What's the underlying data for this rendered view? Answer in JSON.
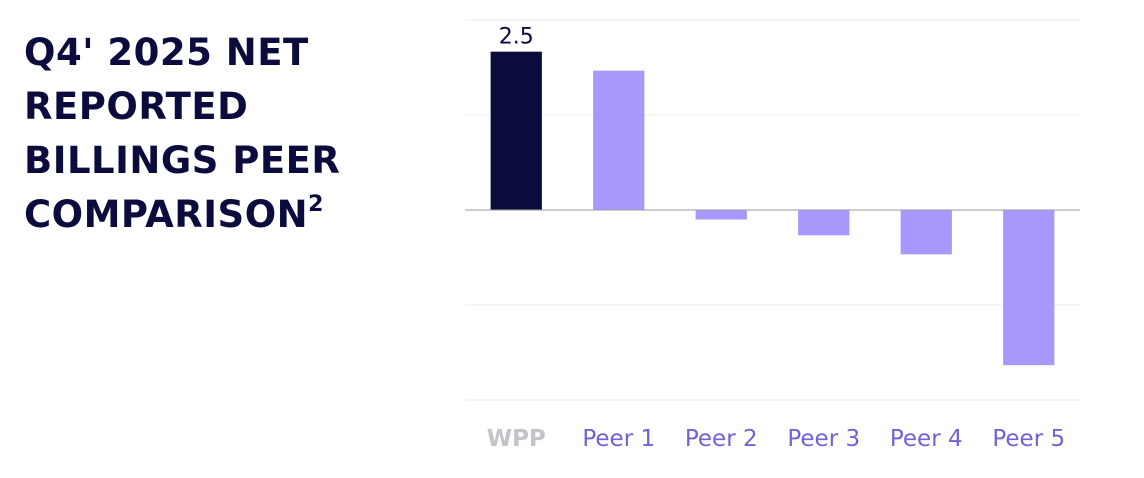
{
  "chart_data": {
    "type": "bar",
    "title": "Q4' 2025 NET REPORTED BILLINGS PEER COMPARISON",
    "title_superscript": "2",
    "categories": [
      "WPP",
      "Peer 1",
      "Peer 2",
      "Peer 3",
      "Peer 4",
      "Peer 5"
    ],
    "values": [
      2.5,
      2.2,
      -0.15,
      -0.4,
      -0.7,
      -2.45
    ],
    "colors": [
      "#0a0c3c",
      "#a898fd",
      "#a898fd",
      "#a898fd",
      "#a898fd",
      "#a898fd"
    ],
    "ylim": [
      -3,
      3
    ],
    "yticks": [
      -3,
      -1.5,
      0,
      1.5,
      3
    ],
    "grid": true
  }
}
